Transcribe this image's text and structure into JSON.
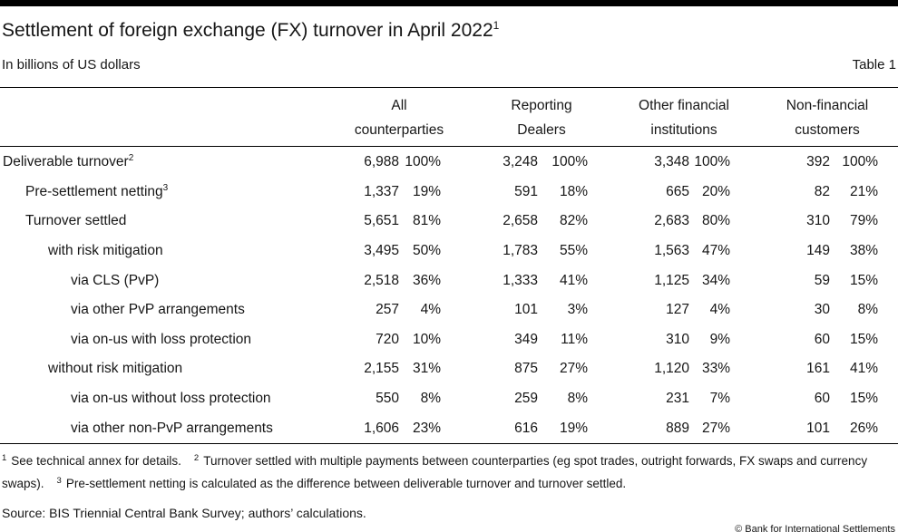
{
  "page": {
    "title": "Settlement of foreign exchange (FX) turnover in April 2022",
    "title_superscript": "1",
    "subtitle": "In billions of US dollars",
    "table_label": "Table 1"
  },
  "colors": {
    "bar": "#000000",
    "text": "#161616",
    "background": "#ffffff"
  },
  "table": {
    "column_groups": [
      {
        "line1": "All",
        "line2": "counterparties"
      },
      {
        "line1": "Reporting",
        "line2": "Dealers"
      },
      {
        "line1": "Other financial",
        "line2": "institutions"
      },
      {
        "line1": "Non-financial",
        "line2": "customers"
      }
    ],
    "rows": [
      {
        "label": "Deliverable turnover",
        "superscript": "2",
        "indent": 0,
        "values": [
          "6,988",
          "100%",
          "3,248",
          "100%",
          "3,348",
          "100%",
          "392",
          "100%"
        ]
      },
      {
        "label": "Pre-settlement netting",
        "superscript": "3",
        "indent": 1,
        "values": [
          "1,337",
          "19%",
          "591",
          "18%",
          "665",
          "20%",
          "82",
          "21%"
        ]
      },
      {
        "label": "Turnover settled",
        "superscript": "",
        "indent": 1,
        "values": [
          "5,651",
          "81%",
          "2,658",
          "82%",
          "2,683",
          "80%",
          "310",
          "79%"
        ]
      },
      {
        "label": "with risk mitigation",
        "superscript": "",
        "indent": 2,
        "values": [
          "3,495",
          "50%",
          "1,783",
          "55%",
          "1,563",
          "47%",
          "149",
          "38%"
        ]
      },
      {
        "label": "via CLS (PvP)",
        "superscript": "",
        "indent": 3,
        "values": [
          "2,518",
          "36%",
          "1,333",
          "41%",
          "1,125",
          "34%",
          "59",
          "15%"
        ]
      },
      {
        "label": "via other PvP arrangements",
        "superscript": "",
        "indent": 3,
        "values": [
          "257",
          "4%",
          "101",
          "3%",
          "127",
          "4%",
          "30",
          "8%"
        ]
      },
      {
        "label": "via on-us with loss protection",
        "superscript": "",
        "indent": 3,
        "values": [
          "720",
          "10%",
          "349",
          "11%",
          "310",
          "9%",
          "60",
          "15%"
        ]
      },
      {
        "label": "without risk mitigation",
        "superscript": "",
        "indent": 2,
        "values": [
          "2,155",
          "31%",
          "875",
          "27%",
          "1,120",
          "33%",
          "161",
          "41%"
        ]
      },
      {
        "label": "via on-us without loss protection",
        "superscript": "",
        "indent": 3,
        "values": [
          "550",
          "8%",
          "259",
          "8%",
          "231",
          "7%",
          "60",
          "15%"
        ]
      },
      {
        "label": "via other non-PvP arrangements",
        "superscript": "",
        "indent": 3,
        "values": [
          "1,606",
          "23%",
          "616",
          "19%",
          "889",
          "27%",
          "101",
          "26%"
        ]
      }
    ]
  },
  "footnotes": [
    {
      "sup": "1",
      "text": "See technical annex for details."
    },
    {
      "sup": "2",
      "text": "Turnover settled with multiple payments between counterparties (eg spot trades, outright forwards, FX swaps and currency swaps)."
    },
    {
      "sup": "3",
      "text": "Pre-settlement netting is calculated as the difference between deliverable turnover and turnover settled."
    }
  ],
  "source": "Source: BIS Triennial Central Bank Survey; authors’ calculations.",
  "copyright": "© Bank for International Settlements"
}
